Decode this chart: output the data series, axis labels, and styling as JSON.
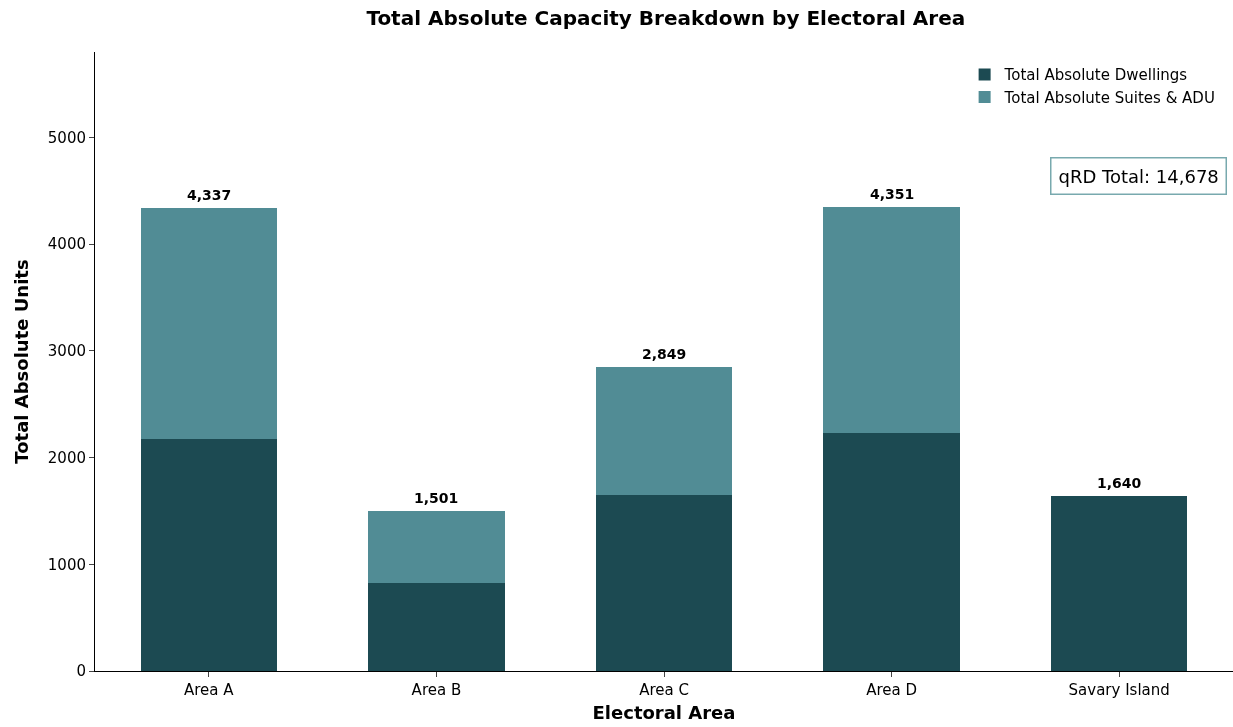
{
  "chart_data": {
    "type": "bar",
    "title": "Total Absolute Capacity Breakdown by Electoral Area",
    "xlabel": "Electoral Area",
    "ylabel": "Total Absolute Units",
    "categories": [
      "Area A",
      "Area B",
      "Area C",
      "Area D",
      "Savary Island"
    ],
    "series": [
      {
        "name": "Total Absolute Dwellings",
        "color": "#1c4a52",
        "values": [
          2170,
          820,
          1650,
          2230,
          1640
        ]
      },
      {
        "name": "Total Absolute Suites & ADU",
        "color": "#518c95",
        "values": [
          2167,
          681,
          1199,
          2121,
          0
        ]
      }
    ],
    "stacked": true,
    "totals": [
      "4,337",
      "1,501",
      "2,849",
      "4,351",
      "1,640"
    ],
    "ylim": [
      0,
      5800
    ],
    "yticks": [
      0,
      1000,
      2000,
      3000,
      4000,
      5000
    ],
    "grid": false,
    "legend": "top right",
    "annotations": [
      "qRD Total: 14,678"
    ]
  }
}
